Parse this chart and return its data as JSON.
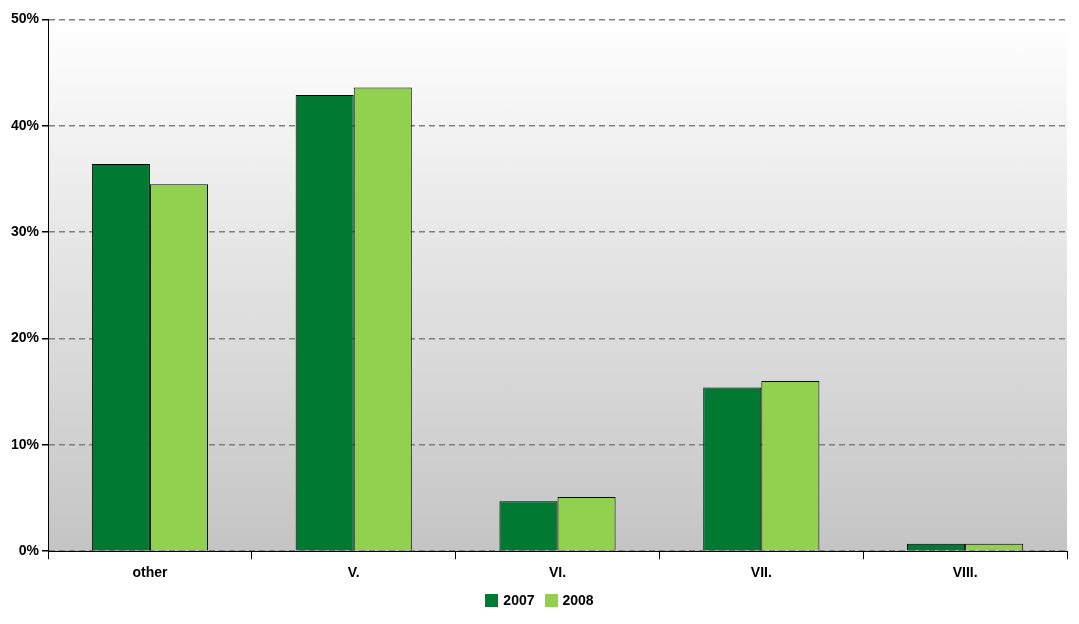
{
  "chart_data": {
    "type": "bar",
    "categories": [
      "other",
      "V.",
      "VI.",
      "VII.",
      "VIII."
    ],
    "series": [
      {
        "name": "2007",
        "color": "#007a33",
        "values": [
          36.4,
          42.9,
          4.7,
          15.4,
          0.7
        ]
      },
      {
        "name": "2008",
        "color": "#92d050",
        "values": [
          34.5,
          43.6,
          5.1,
          16.0,
          0.7
        ]
      }
    ],
    "ylim": [
      0,
      50
    ],
    "yticks": [
      {
        "value": 0,
        "label": "0%"
      },
      {
        "value": 10,
        "label": "10%"
      },
      {
        "value": 20,
        "label": "20%"
      },
      {
        "value": 30,
        "label": "30%"
      },
      {
        "value": 40,
        "label": "40%"
      },
      {
        "value": 50,
        "label": "50%"
      }
    ],
    "grid": "y",
    "legend": "bottom"
  }
}
